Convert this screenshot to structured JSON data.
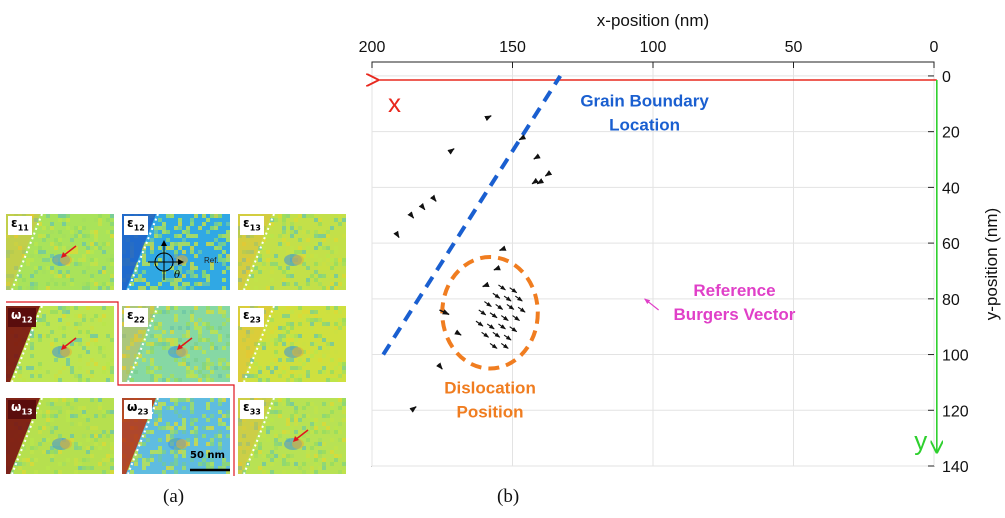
{
  "panel_a": {
    "caption": "(a)",
    "maps": [
      {
        "symbol": "ε",
        "sub": "11"
      },
      {
        "symbol": "ε",
        "sub": "12"
      },
      {
        "symbol": "ε",
        "sub": "13"
      },
      {
        "symbol": "ω",
        "sub": "12"
      },
      {
        "symbol": "ε",
        "sub": "22"
      },
      {
        "symbol": "ε",
        "sub": "23"
      },
      {
        "symbol": "ω",
        "sub": "13"
      },
      {
        "symbol": "ω",
        "sub": "23"
      },
      {
        "symbol": "ε",
        "sub": "33"
      }
    ],
    "theta_label": "θ",
    "ref_label": "Ref.",
    "scale_bar_label": "50 nm"
  },
  "chart_data": {
    "type": "scatter",
    "caption": "(b)",
    "xlabel": "x-position (nm)",
    "ylabel": "y-position (nm)",
    "xlim": [
      200,
      0
    ],
    "ylim": [
      140,
      -5
    ],
    "x_axis_position": "top",
    "y_axis_position": "right",
    "x_reversed": true,
    "y_reversed": true,
    "grid": true,
    "xticks": [
      200,
      150,
      100,
      50,
      0
    ],
    "yticks": [
      0,
      20,
      40,
      60,
      80,
      100,
      120,
      140
    ],
    "arrow_x_label": "x",
    "arrow_y_label": "y",
    "grain_boundary": {
      "label_line1": "Grain Boundary",
      "label_line2": "Location",
      "x": [
        196,
        133
      ],
      "y": [
        100,
        0
      ],
      "color": "#1a5fd0"
    },
    "dislocation": {
      "label_line1": "Dislocation",
      "label_line2": "Position",
      "center": [
        158,
        85
      ],
      "radius_x": 17,
      "radius_y": 20,
      "color": "#f07d20"
    },
    "reference_vector": {
      "label_line1": "Reference",
      "label_line2": "Burgers Vector",
      "color": "#e040c8"
    },
    "burgers_vectors": [
      {
        "x": 159,
        "y": 15,
        "u": -1.4,
        "v": -0.7
      },
      {
        "x": 172,
        "y": 27,
        "u": -1.2,
        "v": -0.9
      },
      {
        "x": 146,
        "y": 22,
        "u": 1.6,
        "v": 0.9
      },
      {
        "x": 141,
        "y": 29,
        "u": 1.4,
        "v": 0.8
      },
      {
        "x": 137,
        "y": 35,
        "u": 1.3,
        "v": 0.9
      },
      {
        "x": 140,
        "y": 38,
        "u": 1.2,
        "v": 0.7
      },
      {
        "x": 178,
        "y": 44,
        "u": -0.8,
        "v": 1.0
      },
      {
        "x": 182,
        "y": 47,
        "u": -0.8,
        "v": 1.0
      },
      {
        "x": 186,
        "y": 50,
        "u": -0.8,
        "v": 1.0
      },
      {
        "x": 191,
        "y": 57,
        "u": -0.6,
        "v": 1.0
      },
      {
        "x": 153,
        "y": 62,
        "u": 1.6,
        "v": 0.6
      },
      {
        "x": 155,
        "y": 69,
        "u": 1.6,
        "v": 0.6
      },
      {
        "x": 159,
        "y": 75,
        "u": 1.6,
        "v": 0.6
      },
      {
        "x": 176,
        "y": 84,
        "u": -3.4,
        "v": 1.6
      },
      {
        "x": 170,
        "y": 92,
        "u": -1.7,
        "v": 1.0
      },
      {
        "x": 176,
        "y": 104,
        "u": -1.0,
        "v": 1.2
      },
      {
        "x": 186,
        "y": 120,
        "u": -1.7,
        "v": -1.3
      },
      {
        "x": 142,
        "y": 38,
        "u": 1.0,
        "v": 0.7
      }
    ],
    "dislocation_vectors": [
      {
        "x": 155,
        "y": 75
      },
      {
        "x": 151,
        "y": 76
      },
      {
        "x": 157,
        "y": 78
      },
      {
        "x": 153,
        "y": 79
      },
      {
        "x": 149,
        "y": 79
      },
      {
        "x": 160,
        "y": 81
      },
      {
        "x": 156,
        "y": 82
      },
      {
        "x": 152,
        "y": 82
      },
      {
        "x": 148,
        "y": 83
      },
      {
        "x": 162,
        "y": 84
      },
      {
        "x": 158,
        "y": 85
      },
      {
        "x": 154,
        "y": 86
      },
      {
        "x": 150,
        "y": 86
      },
      {
        "x": 163,
        "y": 88
      },
      {
        "x": 159,
        "y": 89
      },
      {
        "x": 155,
        "y": 89
      },
      {
        "x": 151,
        "y": 90
      },
      {
        "x": 161,
        "y": 92
      },
      {
        "x": 157,
        "y": 92
      },
      {
        "x": 153,
        "y": 93
      },
      {
        "x": 158,
        "y": 96
      },
      {
        "x": 154,
        "y": 96
      }
    ]
  }
}
